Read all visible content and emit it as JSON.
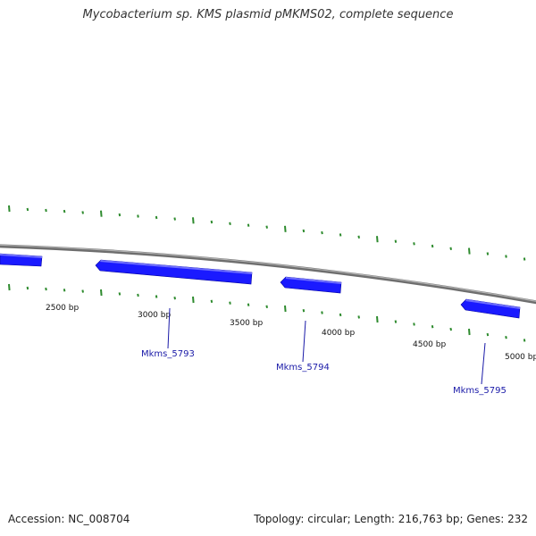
{
  "title": "Mycobacterium sp. KMS plasmid pMKMS02, complete sequence",
  "footer": {
    "accession": "Accession: NC_008704",
    "summary": "Topology: circular; Length: 216,763 bp; Genes: 232"
  },
  "colors": {
    "backbone": "#8a8a8a",
    "gene_fill": "#1a1aff",
    "gene_edge": "#0000a0",
    "tick": "#2e8b2e",
    "label": "#1a1aa8"
  },
  "scale_labels": [
    "2500 bp",
    "3000 bp",
    "3500 bp",
    "4000 bp",
    "4500 bp",
    "5000 bp"
  ],
  "genes": [
    {
      "id": "gene-0",
      "label": "",
      "strand": "forward"
    },
    {
      "id": "Mkms_5793",
      "label": "Mkms_5793",
      "strand": "reverse"
    },
    {
      "id": "Mkms_5794",
      "label": "Mkms_5794",
      "strand": "reverse"
    },
    {
      "id": "Mkms_5795",
      "label": "Mkms_5795",
      "strand": "reverse"
    }
  ]
}
